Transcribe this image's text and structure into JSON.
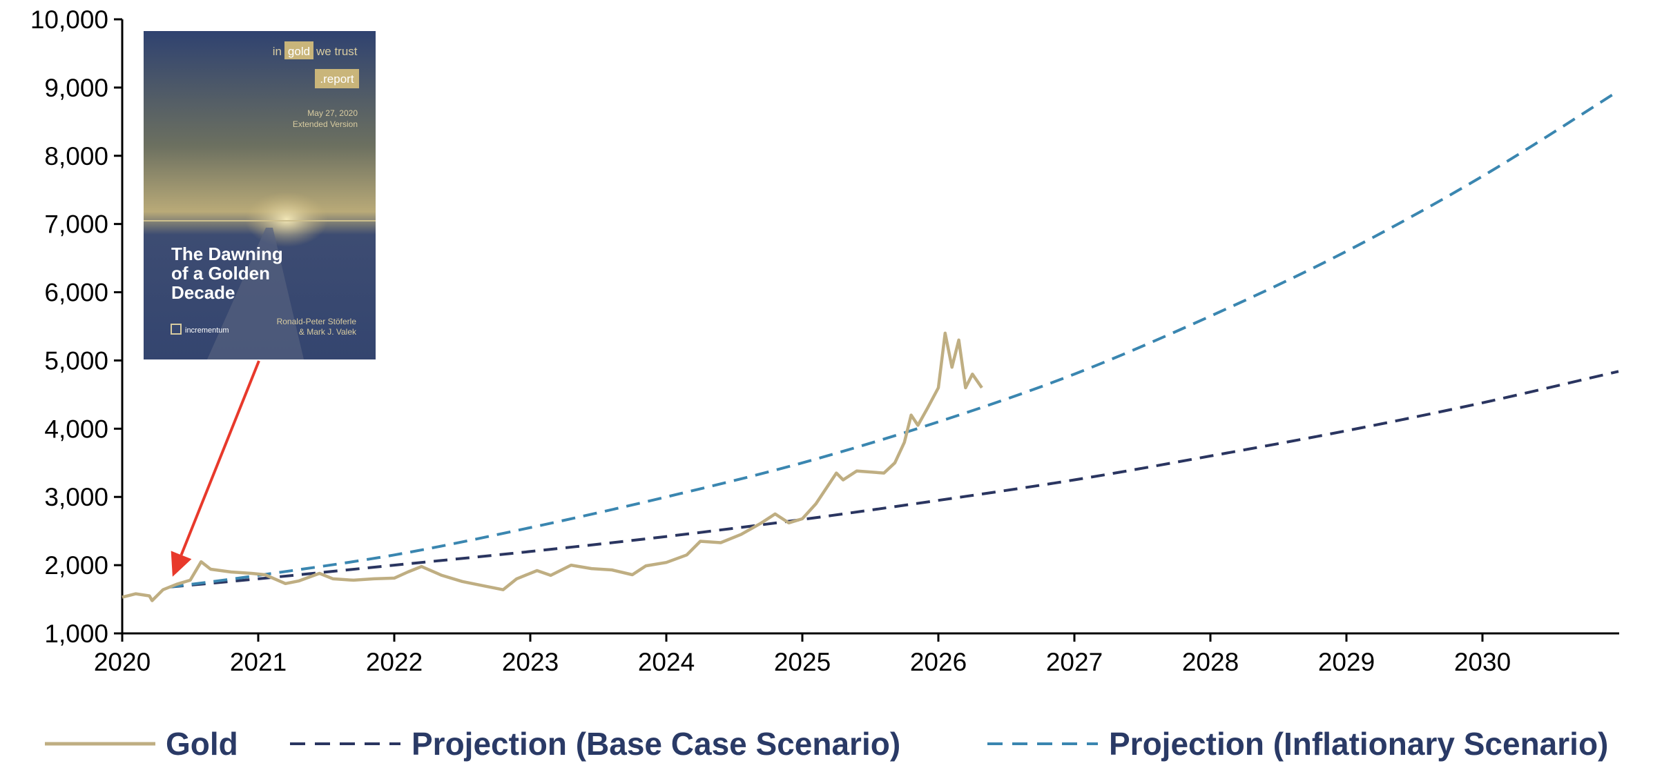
{
  "chart_data": {
    "type": "line",
    "x_range": [
      2020,
      2031
    ],
    "ylim": [
      1000,
      10000
    ],
    "x_ticks": [
      "2020",
      "2021",
      "2022",
      "2023",
      "2024",
      "2025",
      "2026",
      "2027",
      "2028",
      "2029",
      "2030"
    ],
    "y_ticks": [
      "1,000",
      "2,000",
      "3,000",
      "4,000",
      "5,000",
      "6,000",
      "7,000",
      "8,000",
      "9,000",
      "10,000"
    ],
    "grid": false,
    "legend_position": "bottom",
    "series": [
      {
        "name": "Gold",
        "style": "solid",
        "color": "#bfae82",
        "points": [
          [
            2020.0,
            1530
          ],
          [
            2020.1,
            1580
          ],
          [
            2020.2,
            1550
          ],
          [
            2020.22,
            1480
          ],
          [
            2020.3,
            1640
          ],
          [
            2020.4,
            1720
          ],
          [
            2020.5,
            1780
          ],
          [
            2020.58,
            2050
          ],
          [
            2020.65,
            1940
          ],
          [
            2020.8,
            1900
          ],
          [
            2020.95,
            1880
          ],
          [
            2021.05,
            1860
          ],
          [
            2021.2,
            1730
          ],
          [
            2021.3,
            1770
          ],
          [
            2021.45,
            1880
          ],
          [
            2021.55,
            1800
          ],
          [
            2021.7,
            1780
          ],
          [
            2021.85,
            1800
          ],
          [
            2022.0,
            1810
          ],
          [
            2022.1,
            1900
          ],
          [
            2022.2,
            1980
          ],
          [
            2022.35,
            1850
          ],
          [
            2022.5,
            1760
          ],
          [
            2022.65,
            1700
          ],
          [
            2022.8,
            1640
          ],
          [
            2022.9,
            1800
          ],
          [
            2023.05,
            1920
          ],
          [
            2023.15,
            1850
          ],
          [
            2023.3,
            2000
          ],
          [
            2023.45,
            1950
          ],
          [
            2023.6,
            1930
          ],
          [
            2023.75,
            1860
          ],
          [
            2023.85,
            1990
          ],
          [
            2024.0,
            2040
          ],
          [
            2024.15,
            2150
          ],
          [
            2024.25,
            2350
          ],
          [
            2024.4,
            2330
          ],
          [
            2024.55,
            2450
          ],
          [
            2024.7,
            2620
          ],
          [
            2024.8,
            2750
          ],
          [
            2024.9,
            2620
          ],
          [
            2025.0,
            2680
          ],
          [
            2025.1,
            2900
          ],
          [
            2025.25,
            3350
          ],
          [
            2025.3,
            3250
          ],
          [
            2025.4,
            3380
          ],
          [
            2025.6,
            3350
          ],
          [
            2025.68,
            3500
          ],
          [
            2025.75,
            3800
          ],
          [
            2025.8,
            4200
          ],
          [
            2025.85,
            4050
          ],
          [
            2025.92,
            4300
          ],
          [
            2026.0,
            4600
          ],
          [
            2026.05,
            5400
          ],
          [
            2026.1,
            4900
          ],
          [
            2026.15,
            5300
          ],
          [
            2026.2,
            4600
          ],
          [
            2026.25,
            4800
          ],
          [
            2026.32,
            4600
          ]
        ]
      },
      {
        "name": "Projection (Base Case Scenario)",
        "style": "dashed",
        "color": "#2a3560",
        "points": [
          [
            2020.35,
            1680
          ],
          [
            2021.0,
            1800
          ],
          [
            2022.0,
            2000
          ],
          [
            2023.0,
            2200
          ],
          [
            2024.0,
            2420
          ],
          [
            2025.0,
            2670
          ],
          [
            2026.0,
            2950
          ],
          [
            2027.0,
            3250
          ],
          [
            2028.0,
            3600
          ],
          [
            2029.0,
            3970
          ],
          [
            2030.0,
            4380
          ],
          [
            2031.0,
            4840
          ]
        ]
      },
      {
        "name": "Projection (Inflationary Scenario)",
        "style": "dashed",
        "color": "#3a86b0",
        "points": [
          [
            2020.35,
            1680
          ],
          [
            2021.0,
            1850
          ],
          [
            2022.0,
            2150
          ],
          [
            2023.0,
            2550
          ],
          [
            2024.0,
            3000
          ],
          [
            2025.0,
            3500
          ],
          [
            2026.0,
            4100
          ],
          [
            2027.0,
            4800
          ],
          [
            2028.0,
            5650
          ],
          [
            2029.0,
            6600
          ],
          [
            2030.0,
            7700
          ],
          [
            2031.0,
            8950
          ]
        ]
      }
    ],
    "annotation": {
      "type": "arrow",
      "color": "#e8392b",
      "pointing_to": [
        2020.37,
        1830
      ]
    }
  },
  "report_cover": {
    "brand_in": "in",
    "brand_gold": "gold",
    "brand_trust": "we trust",
    "brand_report": ".report",
    "date": "May 27, 2020",
    "edition": "Extended Version",
    "title_line1": "The Dawning",
    "title_line2": "of a Golden",
    "title_line3": "Decade",
    "publisher": "incrementum",
    "author_line1": "Ronald-Peter Stöferle",
    "author_line2": "& Mark J. Valek",
    "colors": {
      "bg_top": "#2f4270",
      "bg_bottom": "#3b4d78",
      "gold": "#c9b57a",
      "light": "#d9ccA0"
    }
  }
}
